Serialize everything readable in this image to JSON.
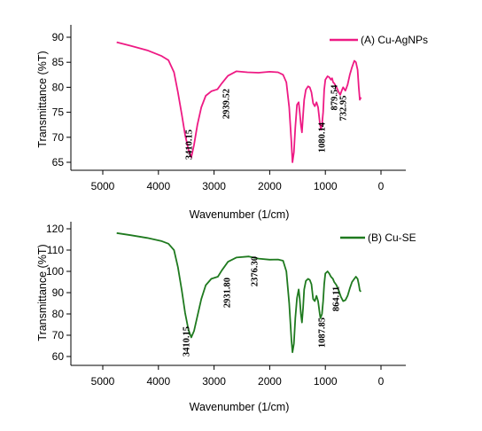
{
  "chart_data": [
    {
      "type": "line",
      "xlabel": "Wavenumber (1/cm)",
      "ylabel": "Transmittance (%T)",
      "xlim": [
        5500,
        -500
      ],
      "ylim": [
        63,
        92
      ],
      "xticks": [
        5000,
        4000,
        3000,
        2000,
        1000,
        0
      ],
      "yticks": [
        65,
        70,
        75,
        80,
        85,
        90
      ],
      "legend": {
        "position": "top-right"
      },
      "series": [
        {
          "name": "(A) Cu-AgNPs",
          "color": "#ee1a84",
          "x": [
            4750,
            4500,
            4200,
            3950,
            3820,
            3720,
            3650,
            3580,
            3520,
            3460,
            3410,
            3360,
            3300,
            3230,
            3150,
            3050,
            2939,
            2860,
            2750,
            2600,
            2400,
            2200,
            2000,
            1850,
            1760,
            1700,
            1650,
            1610,
            1590,
            1565,
            1540,
            1510,
            1480,
            1460,
            1440,
            1420,
            1400,
            1380,
            1350,
            1310,
            1280,
            1250,
            1220,
            1190,
            1160,
            1130,
            1100,
            1080,
            1060,
            1040,
            1020,
            1000,
            960,
            930,
            900,
            879,
            860,
            840,
            800,
            760,
            733,
            710,
            680,
            640,
            600,
            560,
            520,
            480,
            450,
            420,
            400,
            380,
            360
          ],
          "values": [
            89.0,
            88.3,
            87.4,
            86.3,
            85.4,
            83.0,
            79.0,
            74.5,
            70.5,
            67.5,
            66.0,
            68.5,
            72.5,
            76.0,
            78.3,
            79.2,
            79.6,
            80.8,
            82.3,
            83.2,
            83.0,
            82.9,
            83.1,
            83.0,
            82.5,
            81.0,
            76.0,
            69.0,
            65.0,
            67.0,
            72.0,
            76.5,
            77.0,
            75.0,
            72.5,
            71.0,
            74.5,
            77.5,
            79.5,
            80.2,
            80.0,
            79.0,
            76.8,
            76.2,
            77.0,
            76.0,
            73.0,
            71.5,
            72.5,
            75.0,
            79.5,
            81.5,
            82.2,
            82.0,
            81.5,
            81.8,
            81.0,
            80.8,
            80.0,
            79.0,
            78.5,
            79.2,
            80.0,
            79.3,
            80.5,
            82.5,
            84.0,
            85.3,
            85.0,
            83.5,
            80.0,
            77.5,
            78.0
          ]
        }
      ],
      "annotations": [
        "3410.15",
        "2939.52",
        "1080.14",
        "879.54",
        "732.95"
      ]
    },
    {
      "type": "line",
      "xlabel": "Wavenumber (1/cm)",
      "ylabel": "Transmittance (%T)",
      "xlim": [
        5500,
        -500
      ],
      "ylim": [
        55,
        125
      ],
      "xticks": [
        5000,
        4000,
        3000,
        2000,
        1000,
        0
      ],
      "yticks": [
        60,
        70,
        80,
        90,
        100,
        110,
        120
      ],
      "legend": {
        "position": "top-right"
      },
      "series": [
        {
          "name": "(B) Cu-SE",
          "color": "#1f7a1f",
          "x": [
            4750,
            4500,
            4200,
            3950,
            3820,
            3720,
            3650,
            3580,
            3520,
            3460,
            3410,
            3360,
            3300,
            3230,
            3150,
            3050,
            2931,
            2860,
            2750,
            2600,
            2376,
            2200,
            2000,
            1850,
            1760,
            1700,
            1650,
            1610,
            1590,
            1565,
            1540,
            1510,
            1480,
            1460,
            1440,
            1420,
            1400,
            1380,
            1350,
            1310,
            1280,
            1250,
            1220,
            1190,
            1160,
            1130,
            1100,
            1087,
            1060,
            1040,
            1020,
            1000,
            960,
            930,
            900,
            864,
            840,
            800,
            760,
            720,
            680,
            640,
            600,
            560,
            520,
            480,
            450,
            420,
            400,
            380,
            360
          ],
          "values": [
            118.0,
            117.0,
            115.7,
            114.3,
            113.0,
            110.0,
            102.0,
            91.0,
            80.5,
            72.5,
            69.0,
            72.0,
            79.0,
            87.0,
            93.5,
            96.5,
            97.5,
            100.5,
            104.5,
            106.5,
            107.0,
            106.0,
            105.5,
            105.6,
            105.0,
            100.0,
            85.0,
            68.0,
            62.0,
            66.0,
            78.0,
            87.5,
            91.5,
            87.0,
            80.0,
            76.0,
            83.0,
            91.5,
            95.5,
            96.5,
            96.0,
            94.0,
            87.0,
            86.0,
            88.5,
            86.0,
            80.0,
            78.0,
            80.0,
            86.0,
            94.0,
            99.0,
            100.0,
            99.0,
            97.5,
            96.5,
            95.0,
            93.5,
            91.0,
            88.0,
            86.0,
            86.5,
            88.5,
            92.0,
            95.0,
            96.5,
            97.5,
            96.5,
            94.0,
            91.0,
            90.5
          ]
        }
      ],
      "annotations": [
        "3410.15",
        "2931.80",
        "2376.30",
        "1087.85",
        "864.11"
      ]
    }
  ]
}
